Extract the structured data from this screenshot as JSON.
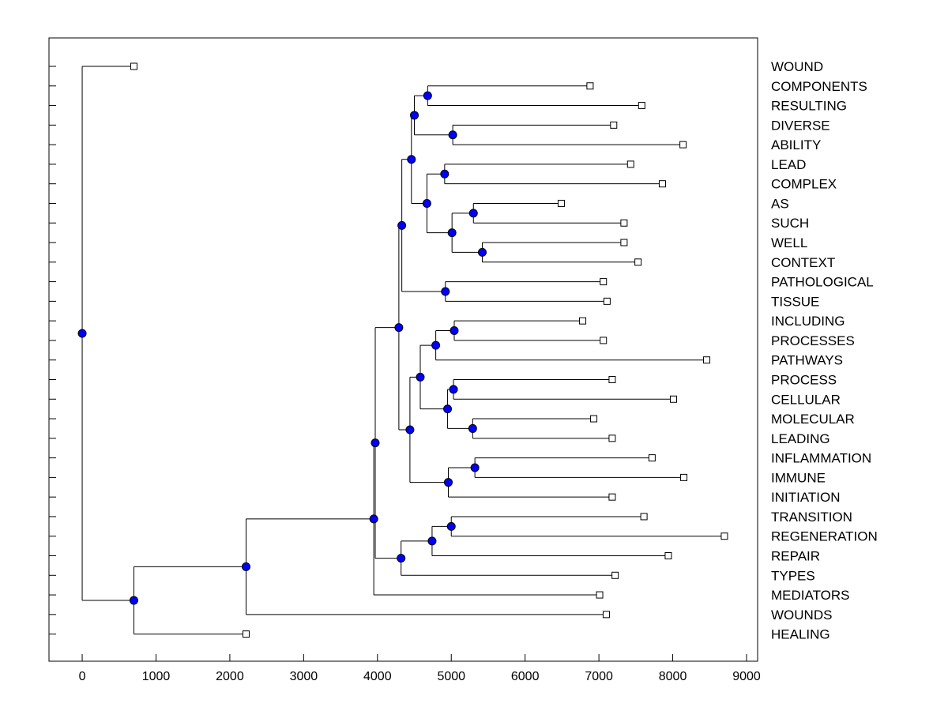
{
  "chart_data": {
    "type": "dendrogram",
    "title": "",
    "xlabel": "",
    "ylabel": "",
    "xlim": [
      -450,
      9150
    ],
    "xticks": [
      0,
      1000,
      2000,
      3000,
      4000,
      5000,
      6000,
      7000,
      8000,
      9000
    ],
    "grid": false,
    "colors": {
      "node": "#0000ff",
      "line": "#000000",
      "leaf": "#ffffff"
    },
    "leaves": [
      {
        "label": "WOUND",
        "value": 700
      },
      {
        "label": "COMPONENTS",
        "value": 6880
      },
      {
        "label": "RESULTING",
        "value": 7580
      },
      {
        "label": "DIVERSE",
        "value": 7200
      },
      {
        "label": "ABILITY",
        "value": 8140
      },
      {
        "label": "LEAD",
        "value": 7430
      },
      {
        "label": "COMPLEX",
        "value": 7860
      },
      {
        "label": "AS",
        "value": 6490
      },
      {
        "label": "SUCH",
        "value": 7340
      },
      {
        "label": "WELL",
        "value": 7340
      },
      {
        "label": "CONTEXT",
        "value": 7530
      },
      {
        "label": "PATHOLOGICAL",
        "value": 7060
      },
      {
        "label": "TISSUE",
        "value": 7110
      },
      {
        "label": "INCLUDING",
        "value": 6780
      },
      {
        "label": "PROCESSES",
        "value": 7060
      },
      {
        "label": "PATHWAYS",
        "value": 8460
      },
      {
        "label": "PROCESS",
        "value": 7180
      },
      {
        "label": "CELLULAR",
        "value": 8010
      },
      {
        "label": "MOLECULAR",
        "value": 6930
      },
      {
        "label": "LEADING",
        "value": 7180
      },
      {
        "label": "INFLAMMATION",
        "value": 7720
      },
      {
        "label": "IMMUNE",
        "value": 8150
      },
      {
        "label": "INITIATION",
        "value": 7180
      },
      {
        "label": "TRANSITION",
        "value": 7610
      },
      {
        "label": "REGENERATION",
        "value": 8700
      },
      {
        "label": "REPAIR",
        "value": 7940
      },
      {
        "label": "TYPES",
        "value": 7220
      },
      {
        "label": "MEDIATORS",
        "value": 7010
      },
      {
        "label": "WOUNDS",
        "value": 7100
      },
      {
        "label": "HEALING",
        "value": 2220
      }
    ],
    "merges": [
      {
        "id": "n1",
        "value": 4680,
        "children": [
          "COMPONENTS",
          "RESULTING"
        ]
      },
      {
        "id": "n2",
        "value": 5020,
        "children": [
          "DIVERSE",
          "ABILITY"
        ]
      },
      {
        "id": "n3",
        "value": 4500,
        "children": [
          "n1",
          "n2"
        ]
      },
      {
        "id": "n4",
        "value": 4910,
        "children": [
          "LEAD",
          "COMPLEX"
        ]
      },
      {
        "id": "n5",
        "value": 5300,
        "children": [
          "AS",
          "SUCH"
        ]
      },
      {
        "id": "n6",
        "value": 5420,
        "children": [
          "WELL",
          "CONTEXT"
        ]
      },
      {
        "id": "n7",
        "value": 5010,
        "children": [
          "n5",
          "n6"
        ]
      },
      {
        "id": "n8",
        "value": 4670,
        "children": [
          "n4",
          "n7"
        ]
      },
      {
        "id": "n9",
        "value": 4460,
        "children": [
          "n3",
          "n8"
        ]
      },
      {
        "id": "n10",
        "value": 4920,
        "children": [
          "PATHOLOGICAL",
          "TISSUE"
        ]
      },
      {
        "id": "n11",
        "value": 4330,
        "children": [
          "n9",
          "n10"
        ]
      },
      {
        "id": "n12",
        "value": 5040,
        "children": [
          "INCLUDING",
          "PROCESSES"
        ]
      },
      {
        "id": "n13",
        "value": 4790,
        "children": [
          "n12",
          "PATHWAYS"
        ]
      },
      {
        "id": "n14",
        "value": 5030,
        "children": [
          "PROCESS",
          "CELLULAR"
        ]
      },
      {
        "id": "n15",
        "value": 5290,
        "children": [
          "MOLECULAR",
          "LEADING"
        ]
      },
      {
        "id": "n16",
        "value": 4950,
        "children": [
          "n14",
          "n15"
        ]
      },
      {
        "id": "n17",
        "value": 4580,
        "children": [
          "n13",
          "n16"
        ]
      },
      {
        "id": "n18",
        "value": 5320,
        "children": [
          "INFLAMMATION",
          "IMMUNE"
        ]
      },
      {
        "id": "n19",
        "value": 4960,
        "children": [
          "n18",
          "INITIATION"
        ]
      },
      {
        "id": "n20",
        "value": 4440,
        "children": [
          "n17",
          "n19"
        ]
      },
      {
        "id": "n21",
        "value": 4290,
        "children": [
          "n11",
          "n20"
        ]
      },
      {
        "id": "n22",
        "value": 5000,
        "children": [
          "TRANSITION",
          "REGENERATION"
        ]
      },
      {
        "id": "n23",
        "value": 4740,
        "children": [
          "n22",
          "REPAIR"
        ]
      },
      {
        "id": "n24",
        "value": 4320,
        "children": [
          "n23",
          "TYPES"
        ]
      },
      {
        "id": "n25",
        "value": 3970,
        "children": [
          "n21",
          "n24"
        ]
      },
      {
        "id": "n26",
        "value": 3950,
        "children": [
          "n25",
          "MEDIATORS"
        ]
      },
      {
        "id": "n27",
        "value": 2220,
        "children": [
          "n26",
          "WOUNDS"
        ]
      },
      {
        "id": "n28",
        "value": 700,
        "children": [
          "n27",
          "HEALING"
        ]
      },
      {
        "id": "n29",
        "value": 0,
        "children": [
          "WOUND",
          "n28"
        ]
      }
    ]
  }
}
